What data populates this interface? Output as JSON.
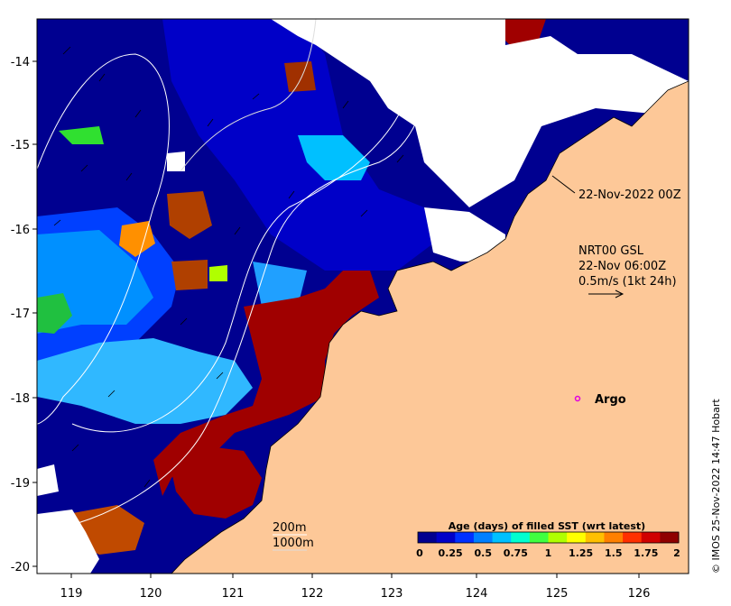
{
  "map": {
    "longitude_range": [
      118.65,
      126.6
    ],
    "latitude_range": [
      -20.05,
      -13.5
    ],
    "x_ticks": [
      "119",
      "120",
      "121",
      "122",
      "123",
      "124",
      "125",
      "126"
    ],
    "y_ticks": [
      "-14",
      "-15",
      "-16",
      "-17",
      "-18",
      "-19",
      "-20"
    ],
    "land_color": "#fdc898",
    "no_data_color": "#ffffff"
  },
  "annotations": {
    "coverage_time": "22-Nov-2022 00Z",
    "current_source": "NRT00 GSL",
    "current_time": "22-Nov 06:00Z",
    "scale_label": "0.5m/s (1kt 24h)",
    "argo_label": "Argo",
    "argo_marker_color": "#e000e0",
    "argo_position": {
      "lon": 125.3,
      "lat": -18.0
    },
    "isobath_200": "200m",
    "isobath_1000": "1000m"
  },
  "colorbar": {
    "title": "Age (days) of filled SST (wrt latest)",
    "tick_labels": [
      "0",
      "0.25",
      "0.5",
      "0.75",
      "1",
      "1.25",
      "1.5",
      "1.75",
      "2"
    ],
    "colors": [
      "#00008f",
      "#0000c8",
      "#0030ff",
      "#0080ff",
      "#00c0ff",
      "#00ffd0",
      "#40ff40",
      "#b0ff00",
      "#ffff00",
      "#ffc000",
      "#ff8000",
      "#ff3000",
      "#d00000",
      "#8f0000"
    ]
  },
  "credit": "© IMOS 25-Nov-2022 14:47 Hobart"
}
